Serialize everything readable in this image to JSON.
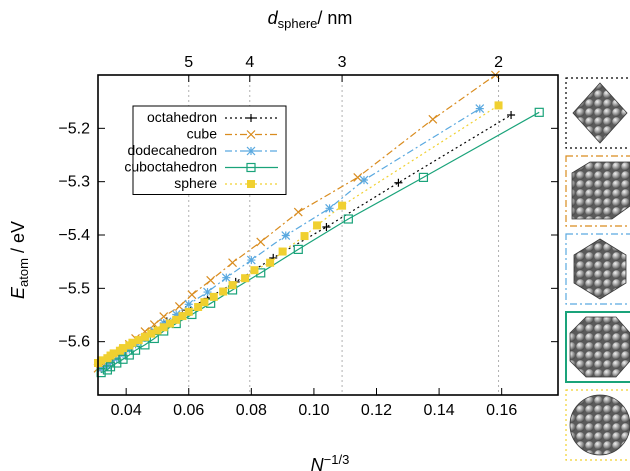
{
  "chart_data": {
    "type": "line",
    "xlabel_parts": {
      "base": "N",
      "sup": "−1/3"
    },
    "ylabel_parts": {
      "base": "E",
      "sub": "atom",
      "rest": " / eV"
    },
    "top_xlabel_parts": {
      "base": "d",
      "sub": "sphere",
      "rest": "/ nm"
    },
    "xlim": [
      0.031,
      0.178
    ],
    "ylim": [
      -5.7,
      -5.1
    ],
    "xticks": [
      0.04,
      0.06,
      0.08,
      0.1,
      0.12,
      0.14,
      0.16
    ],
    "xtick_labels": [
      "0.04",
      "0.06",
      "0.08",
      "0.10",
      "0.12",
      "0.14",
      "0.16"
    ],
    "yticks": [
      -5.6,
      -5.5,
      -5.4,
      -5.3,
      -5.2
    ],
    "ytick_labels": [
      "−5.6",
      "−5.5",
      "−5.4",
      "−5.3",
      "−5.2"
    ],
    "top_ticks": [
      {
        "label": "5",
        "x": 0.06
      },
      {
        "label": "4",
        "x": 0.0795
      },
      {
        "label": "3",
        "x": 0.109
      },
      {
        "label": "2",
        "x": 0.159
      }
    ],
    "legend_position": "top-left",
    "grid": "vertical dotted lines at top-axis ticks",
    "series": [
      {
        "name": "octahedron",
        "color": "#000000",
        "marker": "plus",
        "dash": "2,3",
        "x": [
          0.163,
          0.127,
          0.104,
          0.087,
          0.075,
          0.066,
          0.059,
          0.053,
          0.049,
          0.045,
          0.042,
          0.039,
          0.036,
          0.034,
          0.032
        ],
        "y": [
          -5.175,
          -5.302,
          -5.385,
          -5.443,
          -5.488,
          -5.519,
          -5.541,
          -5.562,
          -5.578,
          -5.592,
          -5.604,
          -5.614,
          -5.624,
          -5.633,
          -5.641
        ]
      },
      {
        "name": "cube",
        "color": "#d98c1f",
        "marker": "x",
        "dash": "7,3,2,3",
        "x": [
          0.158,
          0.138,
          0.114,
          0.095,
          0.083,
          0.074,
          0.067,
          0.061,
          0.057,
          0.052,
          0.049,
          0.046,
          0.043,
          0.041,
          0.039,
          0.037,
          0.035,
          0.034,
          0.032,
          0.031
        ],
        "y": [
          -5.1,
          -5.183,
          -5.292,
          -5.357,
          -5.413,
          -5.452,
          -5.485,
          -5.512,
          -5.534,
          -5.553,
          -5.568,
          -5.581,
          -5.594,
          -5.605,
          -5.615,
          -5.623,
          -5.631,
          -5.638,
          -5.644,
          -5.65
        ]
      },
      {
        "name": "dodecahedron",
        "color": "#5aa9e0",
        "marker": "asterisk",
        "dash": "7,3,2,3",
        "x": [
          0.153,
          0.116,
          0.105,
          0.091,
          0.08,
          0.072,
          0.066,
          0.06,
          0.056,
          0.052,
          0.049,
          0.046,
          0.043,
          0.041,
          0.039,
          0.037,
          0.035,
          0.034,
          0.032
        ],
        "y": [
          -5.163,
          -5.297,
          -5.35,
          -5.401,
          -5.447,
          -5.48,
          -5.507,
          -5.53,
          -5.549,
          -5.565,
          -5.58,
          -5.593,
          -5.605,
          -5.615,
          -5.624,
          -5.632,
          -5.639,
          -5.645,
          -5.651
        ]
      },
      {
        "name": "cuboctahedron",
        "color": "#1aa37a",
        "marker": "square",
        "dash": "",
        "x": [
          0.172,
          0.135,
          0.111,
          0.095,
          0.083,
          0.074,
          0.067,
          0.061,
          0.056,
          0.052,
          0.049,
          0.046,
          0.043,
          0.041,
          0.039,
          0.037,
          0.035,
          0.034,
          0.032
        ],
        "y": [
          -5.17,
          -5.292,
          -5.37,
          -5.427,
          -5.471,
          -5.503,
          -5.528,
          -5.549,
          -5.566,
          -5.58,
          -5.594,
          -5.606,
          -5.616,
          -5.625,
          -5.633,
          -5.64,
          -5.647,
          -5.653,
          -5.658
        ]
      },
      {
        "name": "sphere",
        "color": "#f0d030",
        "marker": "filled-square",
        "dash": "2,3",
        "x": [
          0.159,
          0.109,
          0.101,
          0.097,
          0.09,
          0.086,
          0.081,
          0.078,
          0.074,
          0.071,
          0.068,
          0.065,
          0.063,
          0.06,
          0.058,
          0.056,
          0.054,
          0.052,
          0.05,
          0.048,
          0.046,
          0.044,
          0.042,
          0.041,
          0.039,
          0.038,
          0.036,
          0.035,
          0.034,
          0.032,
          0.031
        ],
        "y": [
          -5.157,
          -5.345,
          -5.382,
          -5.402,
          -5.431,
          -5.452,
          -5.466,
          -5.481,
          -5.494,
          -5.506,
          -5.516,
          -5.526,
          -5.535,
          -5.544,
          -5.552,
          -5.559,
          -5.566,
          -5.573,
          -5.579,
          -5.585,
          -5.591,
          -5.597,
          -5.602,
          -5.607,
          -5.612,
          -5.617,
          -5.622,
          -5.626,
          -5.631,
          -5.635,
          -5.64
        ]
      }
    ]
  },
  "side_panels": [
    {
      "shape": "octahedron",
      "color": "#000000",
      "dash": "2,3"
    },
    {
      "shape": "cube",
      "color": "#d98c1f",
      "dash": "7,3,2,3"
    },
    {
      "shape": "dodecahedron",
      "color": "#5aa9e0",
      "dash": "7,3,2,3"
    },
    {
      "shape": "cuboctahedron",
      "color": "#1aa37a",
      "dash": ""
    },
    {
      "shape": "sphere",
      "color": "#f0d030",
      "dash": "2,3"
    }
  ]
}
